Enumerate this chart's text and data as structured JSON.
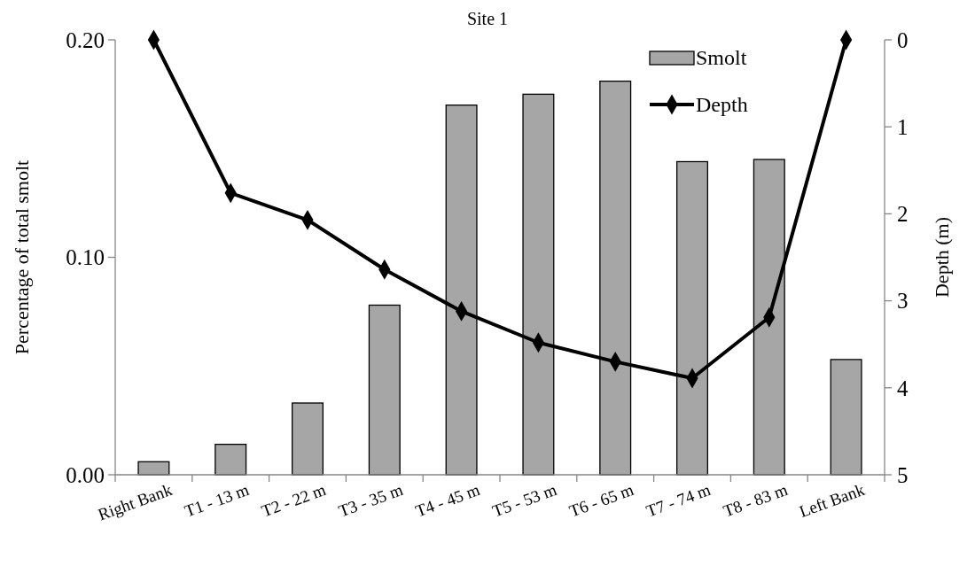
{
  "chart_data": {
    "type": "bar",
    "title": "Site 1",
    "categories": [
      "Right Bank",
      "T1 - 13 m",
      "T2 - 22 m",
      "T3 - 35 m",
      "T4 - 45 m",
      "T5 - 53 m",
      "T6 - 65 m",
      "T7 - 74 m",
      "T8 - 83 m",
      "Left Bank"
    ],
    "series": [
      {
        "name": "Smolt",
        "color": "#a6a6a6",
        "values": [
          0.006,
          0.014,
          0.033,
          0.078,
          0.17,
          0.175,
          0.181,
          0.144,
          0.145,
          0.053
        ]
      },
      {
        "name": "Depth",
        "type": "line",
        "axis": "y2",
        "color": "#000000",
        "marker": "diamond",
        "values": [
          0,
          1.76,
          2.07,
          2.64,
          3.12,
          3.48,
          3.7,
          3.89,
          3.19,
          0
        ]
      }
    ],
    "ylabel": "Percentage of total smolt",
    "y2label": "Depth (m)",
    "ylim": [
      0,
      0.2
    ],
    "yticks": [
      {
        "value": 0,
        "label": "0.00"
      },
      {
        "value": 0.1,
        "label": "0.10"
      },
      {
        "value": 0.2,
        "label": "0.20"
      }
    ],
    "y2lim": [
      5,
      0
    ],
    "y2ticks": [
      0,
      1,
      2,
      3,
      4,
      5
    ],
    "legend": "top right",
    "grid": false
  }
}
